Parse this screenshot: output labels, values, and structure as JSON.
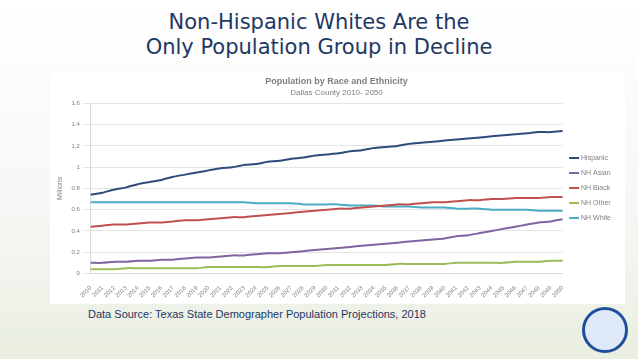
{
  "header": {
    "title_lines": [
      "Non-Hispanic Whites Are the",
      "Only Population Group in Decline"
    ]
  },
  "footer": {
    "source": "Data Source: Texas State Demographer Population Projections, 2018"
  },
  "chart_data": {
    "type": "line",
    "title": "Population by Race and Ethnicity",
    "subtitle": "Dallas County 2010- 2050",
    "y_label": "Millions",
    "categories": [
      "2010",
      "2011",
      "2012",
      "2013",
      "2014",
      "2015",
      "2016",
      "2017",
      "2018",
      "2019",
      "2020",
      "2021",
      "2022",
      "2023",
      "2024",
      "2025",
      "2026",
      "2027",
      "2028",
      "2029",
      "2030",
      "2031",
      "2032",
      "2033",
      "2034",
      "2035",
      "2036",
      "2037",
      "2038",
      "2039",
      "2040",
      "2041",
      "2042",
      "2043",
      "2044",
      "2045",
      "2046",
      "2047",
      "2048",
      "2049",
      "2050"
    ],
    "series": [
      {
        "name": "Hispanic",
        "color": "#2f4b7c",
        "values": [
          0.74,
          0.76,
          0.79,
          0.81,
          0.84,
          0.86,
          0.88,
          0.91,
          0.93,
          0.95,
          0.97,
          0.99,
          1.0,
          1.02,
          1.03,
          1.05,
          1.06,
          1.08,
          1.09,
          1.11,
          1.12,
          1.13,
          1.15,
          1.16,
          1.18,
          1.19,
          1.2,
          1.22,
          1.23,
          1.24,
          1.25,
          1.26,
          1.27,
          1.28,
          1.29,
          1.3,
          1.31,
          1.32,
          1.33,
          1.33,
          1.34
        ]
      },
      {
        "name": "NH Asian",
        "color": "#8064a2",
        "values": [
          0.1,
          0.1,
          0.11,
          0.11,
          0.12,
          0.12,
          0.13,
          0.13,
          0.14,
          0.15,
          0.15,
          0.16,
          0.17,
          0.17,
          0.18,
          0.19,
          0.19,
          0.2,
          0.21,
          0.22,
          0.23,
          0.24,
          0.25,
          0.26,
          0.27,
          0.28,
          0.29,
          0.3,
          0.31,
          0.32,
          0.33,
          0.35,
          0.36,
          0.38,
          0.4,
          0.42,
          0.44,
          0.46,
          0.48,
          0.49,
          0.51
        ]
      },
      {
        "name": "NH Black",
        "color": "#c0504d",
        "values": [
          0.44,
          0.45,
          0.46,
          0.46,
          0.47,
          0.48,
          0.48,
          0.49,
          0.5,
          0.5,
          0.51,
          0.52,
          0.53,
          0.53,
          0.54,
          0.55,
          0.56,
          0.57,
          0.58,
          0.59,
          0.6,
          0.61,
          0.61,
          0.62,
          0.63,
          0.64,
          0.65,
          0.65,
          0.66,
          0.67,
          0.67,
          0.68,
          0.69,
          0.69,
          0.7,
          0.7,
          0.71,
          0.71,
          0.71,
          0.72,
          0.72
        ]
      },
      {
        "name": "NH Other",
        "color": "#9bbb59",
        "values": [
          0.04,
          0.04,
          0.04,
          0.05,
          0.05,
          0.05,
          0.05,
          0.05,
          0.05,
          0.05,
          0.06,
          0.06,
          0.06,
          0.06,
          0.06,
          0.06,
          0.07,
          0.07,
          0.07,
          0.07,
          0.08,
          0.08,
          0.08,
          0.08,
          0.08,
          0.08,
          0.09,
          0.09,
          0.09,
          0.09,
          0.09,
          0.1,
          0.1,
          0.1,
          0.1,
          0.1,
          0.11,
          0.11,
          0.11,
          0.12,
          0.12
        ]
      },
      {
        "name": "NH White",
        "color": "#4bacc6",
        "values": [
          0.67,
          0.67,
          0.67,
          0.67,
          0.67,
          0.67,
          0.67,
          0.67,
          0.67,
          0.67,
          0.67,
          0.67,
          0.67,
          0.67,
          0.66,
          0.66,
          0.66,
          0.66,
          0.65,
          0.65,
          0.65,
          0.65,
          0.64,
          0.64,
          0.64,
          0.63,
          0.63,
          0.63,
          0.62,
          0.62,
          0.62,
          0.61,
          0.61,
          0.61,
          0.6,
          0.6,
          0.6,
          0.6,
          0.59,
          0.59,
          0.59
        ]
      }
    ],
    "ylim": [
      0,
      1.6
    ],
    "yticks": [
      0,
      0.2,
      0.4,
      0.6,
      0.8,
      1,
      1.2,
      1.4,
      1.6
    ],
    "grid": true,
    "legend": "right"
  }
}
